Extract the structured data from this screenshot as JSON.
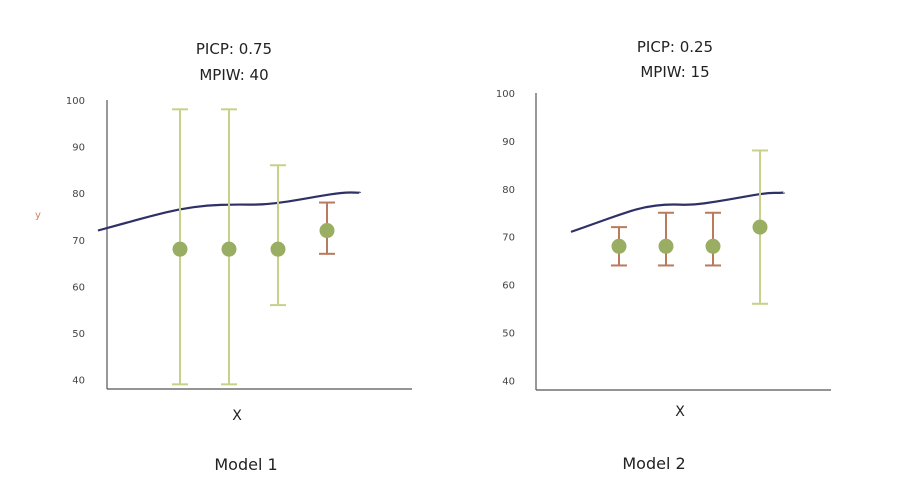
{
  "colors": {
    "curve": "#2e3166",
    "wide_interval": "#c8d08a",
    "narrow_interval": "#b97a5e",
    "point": "#99ad63",
    "axis": "#555555",
    "y_marker": "#d08060"
  },
  "chart_data": [
    {
      "type": "scatter",
      "title_lines": [
        "PICP: 0.75",
        "MPIW: 40"
      ],
      "xlabel": "X",
      "ylabel": "",
      "caption": "Model 1",
      "y_marker": "y",
      "ylim": [
        38,
        100
      ],
      "yticks": [
        100,
        90,
        80,
        70,
        60,
        50,
        40
      ],
      "curve": {
        "x": [
          0,
          0.5,
          1,
          1.5,
          2,
          2.5,
          3,
          3.5,
          4,
          4.5,
          4.8
        ],
        "y": [
          72,
          73.6,
          75.2,
          76.6,
          77.4,
          77.6,
          77.5,
          78.2,
          79.3,
          80.2,
          80.1
        ]
      },
      "points": [
        {
          "x": 1,
          "y": 68,
          "lower": 39,
          "upper": 98
        },
        {
          "x": 2,
          "y": 68,
          "lower": 39,
          "upper": 98
        },
        {
          "x": 3,
          "y": 68,
          "lower": 56,
          "upper": 86
        },
        {
          "x": 4,
          "y": 72,
          "lower": 67,
          "upper": 78
        }
      ]
    },
    {
      "type": "scatter",
      "title_lines": [
        "PICP: 0.25",
        "MPIW: 15"
      ],
      "xlabel": "X",
      "ylabel": "",
      "caption": "Model 2",
      "ylim": [
        38,
        100
      ],
      "yticks": [
        100,
        90,
        80,
        70,
        60,
        50,
        40
      ],
      "curve": {
        "x": [
          0,
          0.5,
          1,
          1.5,
          2,
          2.5,
          3,
          3.5,
          4,
          4.4
        ],
        "y": [
          71,
          72.8,
          74.6,
          76.2,
          76.8,
          76.6,
          77.3,
          78.2,
          79.1,
          79.2
        ]
      },
      "points": [
        {
          "x": 1,
          "y": 68,
          "lower": 64,
          "upper": 72
        },
        {
          "x": 2,
          "y": 68,
          "lower": 64,
          "upper": 75
        },
        {
          "x": 3,
          "y": 68,
          "lower": 64,
          "upper": 75
        },
        {
          "x": 4,
          "y": 72,
          "lower": 56,
          "upper": 88
        }
      ]
    }
  ]
}
